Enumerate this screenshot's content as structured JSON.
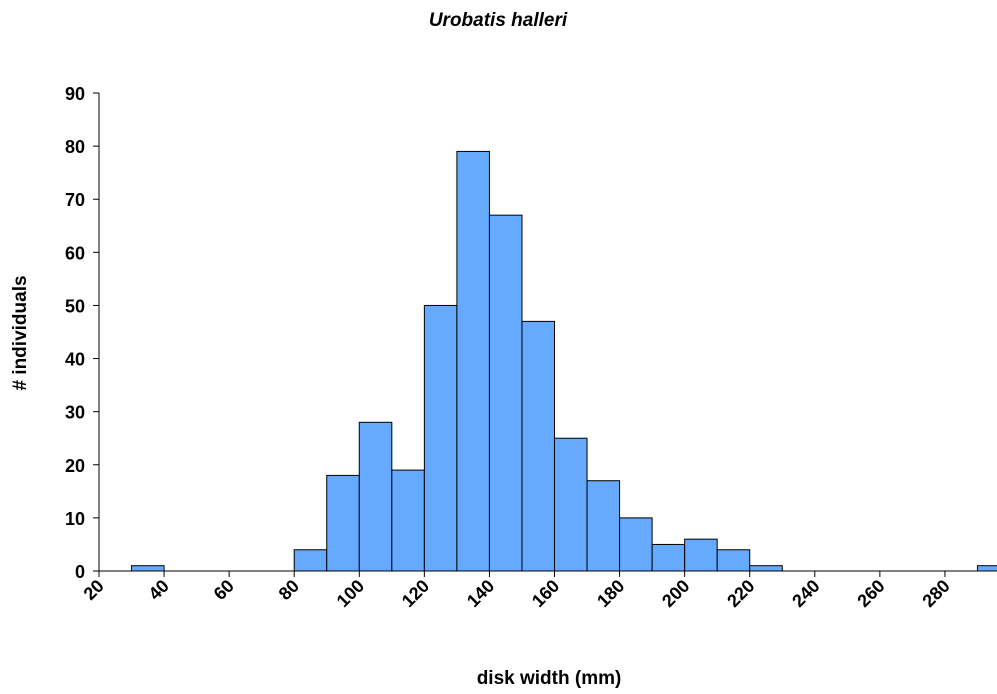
{
  "chart_data": {
    "type": "histogram",
    "title": "Urobatis halleri",
    "xlabel": "disk width (mm)",
    "ylabel": "# individuals",
    "bins": [
      30,
      40,
      50,
      60,
      70,
      80,
      90,
      100,
      110,
      120,
      130,
      140,
      150,
      160,
      170,
      180,
      190,
      200,
      210,
      220,
      230,
      240,
      250,
      260,
      270,
      280,
      290,
      300
    ],
    "values": [
      1,
      0,
      0,
      0,
      0,
      4,
      18,
      28,
      19,
      50,
      79,
      67,
      47,
      25,
      17,
      10,
      5,
      6,
      4,
      1,
      0,
      0,
      0,
      0,
      0,
      0,
      1
    ],
    "color": "#66aaff",
    "xlim": [
      20,
      296
    ],
    "xticks": [
      20,
      40,
      60,
      80,
      100,
      120,
      140,
      160,
      180,
      200,
      220,
      240,
      260,
      280
    ],
    "ylim": [
      0,
      90
    ],
    "yticks": [
      0,
      10,
      20,
      30,
      40,
      50,
      60,
      70,
      80,
      90
    ]
  }
}
